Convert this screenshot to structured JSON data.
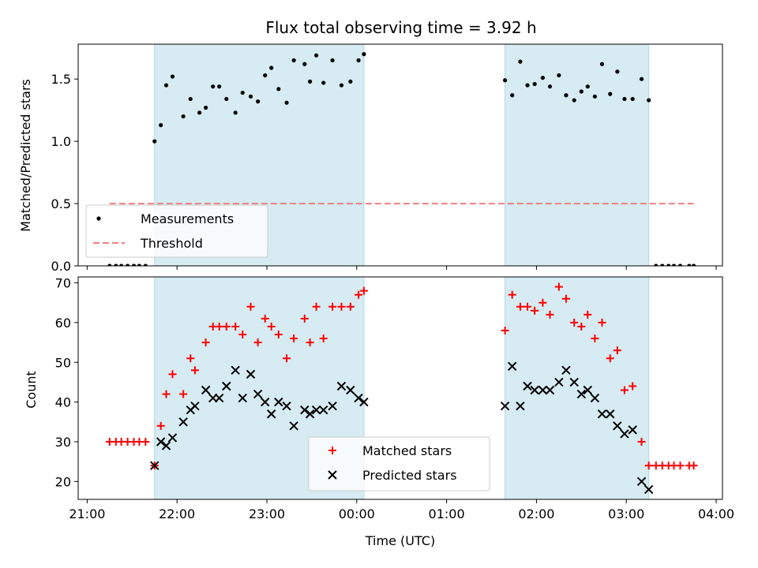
{
  "chart_data": [
    {
      "type": "scatter",
      "title": "Flux total observing time = 3.92 h",
      "xlabel": "",
      "ylabel": "Matched/Predicted stars",
      "xticks": [
        "21:00",
        "22:00",
        "23:00",
        "00:00",
        "01:00",
        "02:00",
        "03:00",
        "04:00"
      ],
      "xticks_hours": [
        21,
        22,
        23,
        24,
        25,
        26,
        27,
        28
      ],
      "xlim_hours": [
        20.9,
        28.07
      ],
      "ylim": [
        0,
        1.78
      ],
      "yticks": [
        "0.0",
        "0.5",
        "1.0",
        "1.5"
      ],
      "shaded_regions_hours": [
        [
          21.75,
          24.08
        ],
        [
          25.65,
          27.25
        ]
      ],
      "legend_position": "lower-left",
      "series": [
        {
          "name": "Measurements",
          "marker": "dot",
          "color": "#000000",
          "x_hours": [
            21.25,
            21.32,
            21.38,
            21.45,
            21.52,
            21.58,
            21.65,
            21.75,
            21.82,
            21.88,
            21.95,
            22.07,
            22.15,
            22.25,
            22.32,
            22.4,
            22.47,
            22.55,
            22.65,
            22.73,
            22.82,
            22.9,
            22.98,
            23.05,
            23.13,
            23.22,
            23.3,
            23.42,
            23.48,
            23.55,
            23.63,
            23.73,
            23.83,
            23.93,
            24.02,
            24.08,
            25.65,
            25.73,
            25.82,
            25.9,
            25.98,
            26.07,
            26.15,
            26.25,
            26.33,
            26.42,
            26.5,
            26.57,
            26.65,
            26.73,
            26.82,
            26.9,
            26.98,
            27.07,
            27.17,
            27.25,
            27.33,
            27.4,
            27.47,
            27.53,
            27.6,
            27.7,
            27.75
          ],
          "y": [
            0,
            0,
            0,
            0,
            0,
            0,
            0,
            1.0,
            1.13,
            1.45,
            1.52,
            1.2,
            1.34,
            1.23,
            1.27,
            1.44,
            1.44,
            1.34,
            1.23,
            1.39,
            1.36,
            1.32,
            1.53,
            1.59,
            1.42,
            1.31,
            1.65,
            1.62,
            1.48,
            1.69,
            1.47,
            1.65,
            1.45,
            1.48,
            1.65,
            1.7,
            1.49,
            1.37,
            1.64,
            1.45,
            1.46,
            1.51,
            1.44,
            1.53,
            1.37,
            1.33,
            1.4,
            1.44,
            1.36,
            1.62,
            1.38,
            1.56,
            1.34,
            1.34,
            1.5,
            1.33,
            0,
            0,
            0,
            0,
            0,
            0,
            0
          ]
        },
        {
          "name": "Threshold",
          "style": "dashed",
          "color": "#f08080",
          "x_hours": [
            21.25,
            27.75
          ],
          "y": [
            0.5,
            0.5
          ]
        }
      ]
    },
    {
      "type": "scatter",
      "title": "",
      "xlabel": "Time (UTC)",
      "ylabel": "Count",
      "xticks": [
        "21:00",
        "22:00",
        "23:00",
        "00:00",
        "01:00",
        "02:00",
        "03:00",
        "04:00"
      ],
      "xticks_hours": [
        21,
        22,
        23,
        24,
        25,
        26,
        27,
        28
      ],
      "xlim_hours": [
        20.9,
        28.07
      ],
      "ylim": [
        15.5,
        71.5
      ],
      "yticks": [
        "20",
        "30",
        "40",
        "50",
        "60",
        "70"
      ],
      "shaded_regions_hours": [
        [
          21.75,
          24.08
        ],
        [
          25.65,
          27.25
        ]
      ],
      "legend_position": "lower-center",
      "series": [
        {
          "name": "Matched stars",
          "marker": "plus",
          "color": "#ff0000",
          "x_hours": [
            21.25,
            21.32,
            21.38,
            21.45,
            21.52,
            21.58,
            21.65,
            21.75,
            21.82,
            21.88,
            21.95,
            22.07,
            22.15,
            22.2,
            22.32,
            22.4,
            22.47,
            22.55,
            22.65,
            22.73,
            22.82,
            22.9,
            22.98,
            23.05,
            23.13,
            23.22,
            23.3,
            23.42,
            23.48,
            23.55,
            23.63,
            23.73,
            23.83,
            23.93,
            24.02,
            24.08,
            25.65,
            25.73,
            25.82,
            25.9,
            25.98,
            26.07,
            26.15,
            26.25,
            26.33,
            26.42,
            26.5,
            26.57,
            26.65,
            26.73,
            26.82,
            26.9,
            26.98,
            27.07,
            27.17,
            27.25,
            27.33,
            27.4,
            27.47,
            27.53,
            27.6,
            27.7,
            27.75
          ],
          "y": [
            30,
            30,
            30,
            30,
            30,
            30,
            30,
            24,
            34,
            42,
            47,
            42,
            51,
            48,
            55,
            59,
            59,
            59,
            59,
            57,
            64,
            55,
            61,
            59,
            57,
            51,
            56,
            61,
            55,
            64,
            56,
            64,
            64,
            64,
            67,
            68,
            58,
            67,
            64,
            64,
            63,
            65,
            62,
            69,
            66,
            60,
            59,
            62,
            56,
            60,
            51,
            53,
            43,
            44,
            30,
            24,
            24,
            24,
            24,
            24,
            24,
            24,
            24
          ]
        },
        {
          "name": "Predicted stars",
          "marker": "x",
          "color": "#000000",
          "x_hours": [
            21.75,
            21.82,
            21.88,
            21.95,
            22.07,
            22.15,
            22.2,
            22.32,
            22.4,
            22.47,
            22.55,
            22.65,
            22.73,
            22.82,
            22.9,
            22.98,
            23.05,
            23.13,
            23.22,
            23.3,
            23.42,
            23.48,
            23.55,
            23.63,
            23.73,
            23.83,
            23.93,
            24.02,
            24.08,
            25.65,
            25.73,
            25.82,
            25.9,
            25.98,
            26.07,
            26.15,
            26.25,
            26.33,
            26.42,
            26.5,
            26.57,
            26.65,
            26.73,
            26.82,
            26.9,
            26.98,
            27.07,
            27.17,
            27.25
          ],
          "y": [
            24,
            30,
            29,
            31,
            35,
            38,
            39,
            43,
            41,
            41,
            44,
            48,
            41,
            47,
            42,
            40,
            37,
            40,
            39,
            34,
            38,
            37,
            38,
            38,
            39,
            44,
            43,
            41,
            40,
            39,
            49,
            39,
            44,
            43,
            43,
            43,
            45,
            48,
            45,
            42,
            43,
            41,
            37,
            37,
            34,
            32,
            33,
            20,
            18
          ]
        }
      ]
    }
  ]
}
